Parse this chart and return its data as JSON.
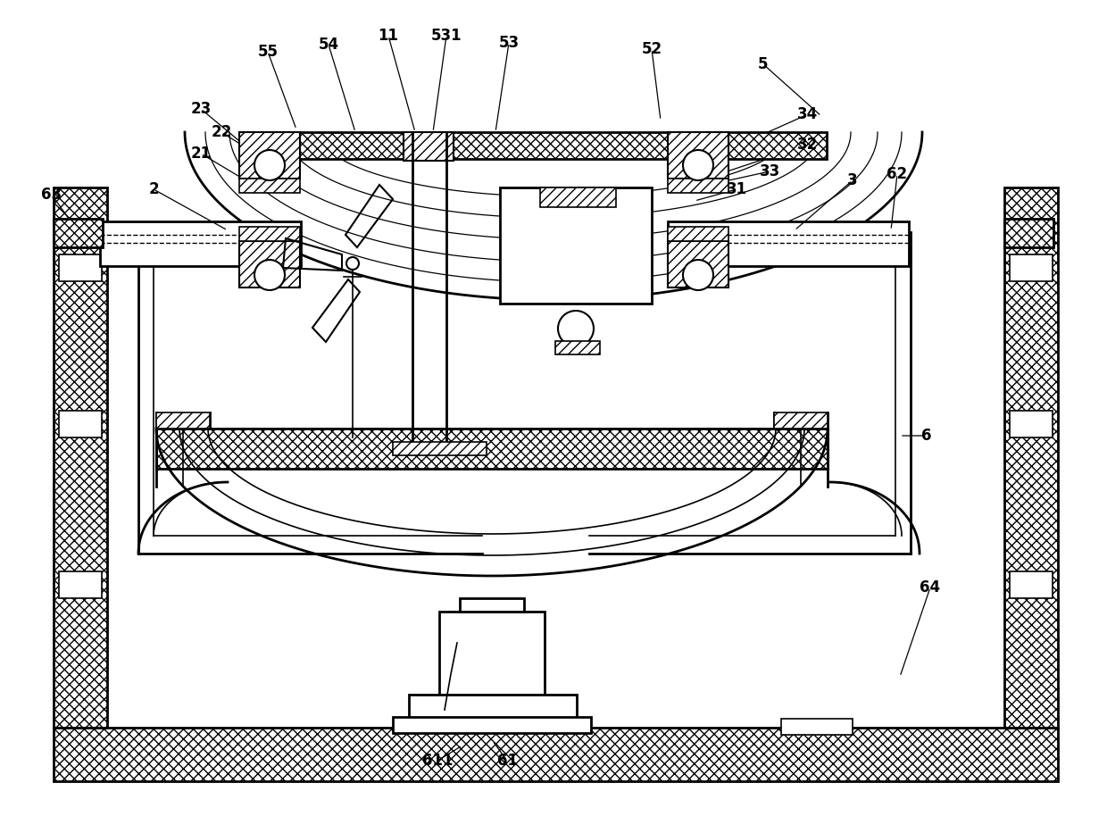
{
  "bg_color": "#ffffff",
  "figsize": [
    12.4,
    9.33
  ],
  "dpi": 100,
  "labels": [
    [
      "5",
      855,
      72,
      920,
      130
    ],
    [
      "52",
      730,
      55,
      740,
      135
    ],
    [
      "53",
      570,
      48,
      555,
      148
    ],
    [
      "531",
      500,
      40,
      485,
      148
    ],
    [
      "11",
      435,
      40,
      465,
      148
    ],
    [
      "54",
      368,
      50,
      398,
      148
    ],
    [
      "55",
      300,
      58,
      332,
      145
    ],
    [
      "34",
      905,
      128,
      755,
      195
    ],
    [
      "32",
      905,
      162,
      760,
      210
    ],
    [
      "33",
      862,
      192,
      780,
      210
    ],
    [
      "31",
      825,
      212,
      778,
      225
    ],
    [
      "3",
      955,
      202,
      890,
      258
    ],
    [
      "62",
      1005,
      195,
      998,
      258
    ],
    [
      "2",
      172,
      212,
      255,
      258
    ],
    [
      "21",
      225,
      172,
      302,
      218
    ],
    [
      "22",
      248,
      148,
      302,
      182
    ],
    [
      "23",
      225,
      122,
      285,
      172
    ],
    [
      "63",
      58,
      218,
      82,
      252
    ],
    [
      "6",
      1038,
      488,
      1008,
      488
    ],
    [
      "64",
      1042,
      658,
      1008,
      758
    ],
    [
      "61",
      568,
      852,
      552,
      830
    ],
    [
      "611",
      490,
      852,
      518,
      835
    ]
  ]
}
